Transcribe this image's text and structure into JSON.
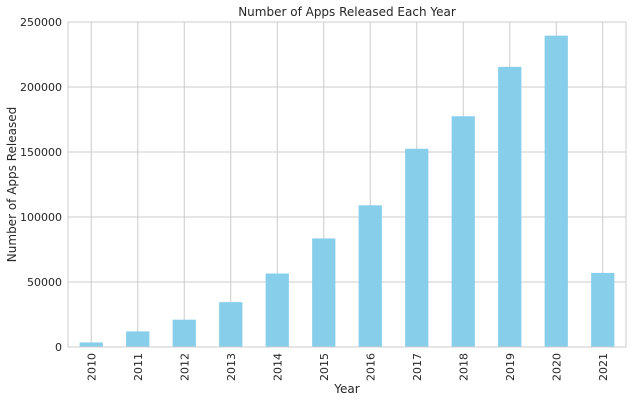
{
  "chart_data": {
    "type": "bar",
    "title": "Number of Apps Released Each Year",
    "xlabel": "Year",
    "ylabel": "Number of Apps Released",
    "categories": [
      "2010",
      "2011",
      "2012",
      "2013",
      "2014",
      "2015",
      "2016",
      "2017",
      "2018",
      "2019",
      "2020",
      "2021"
    ],
    "values": [
      3500,
      12000,
      21000,
      34500,
      56500,
      83500,
      109000,
      152500,
      177500,
      215500,
      239500,
      57000
    ],
    "ylim": [
      0,
      250000
    ],
    "yticks": [
      0,
      50000,
      100000,
      150000,
      200000,
      250000
    ],
    "grid": true,
    "bar_color": "#87ceeb",
    "grid_color": "#cccccc"
  }
}
